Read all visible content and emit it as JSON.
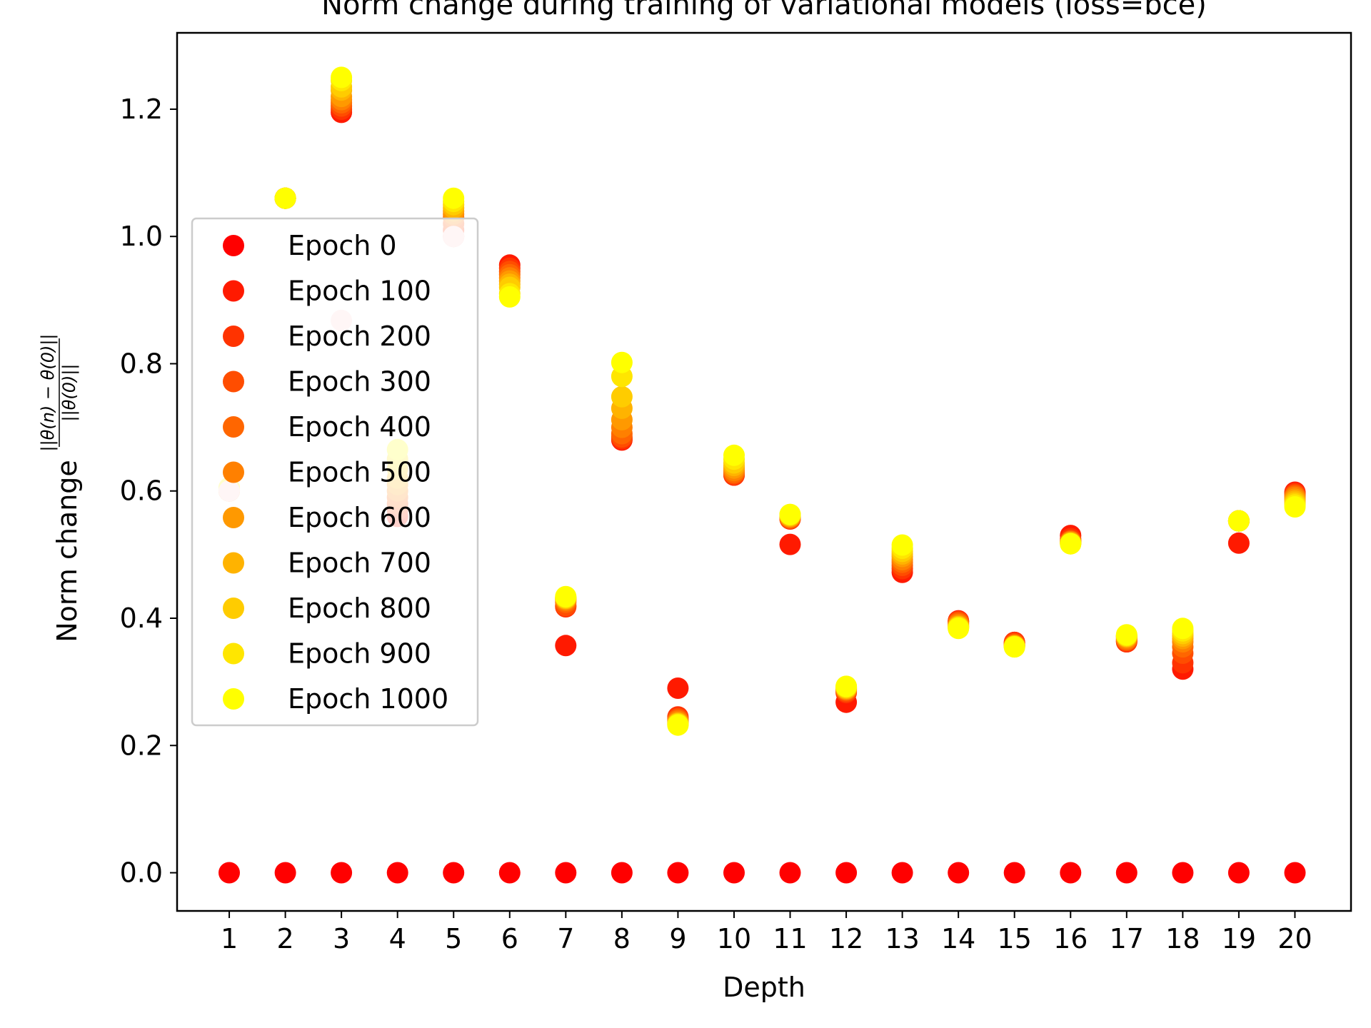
{
  "chart_data": {
    "type": "scatter",
    "title": "Norm change during training of variational models (loss=bce)",
    "xlabel": "Depth",
    "ylabel_prefix": "Norm change",
    "ylabel_frac_num": "||θ(n) − θ(0)||",
    "ylabel_frac_den": "||θ(0)||",
    "x": [
      1,
      2,
      3,
      4,
      5,
      6,
      7,
      8,
      9,
      10,
      11,
      12,
      13,
      14,
      15,
      16,
      17,
      18,
      19,
      20
    ],
    "xlim": [
      0.07,
      21.0
    ],
    "ylim": [
      -0.06,
      1.32
    ],
    "x_ticks": [
      "1",
      "2",
      "3",
      "4",
      "5",
      "6",
      "7",
      "8",
      "9",
      "10",
      "11",
      "12",
      "13",
      "14",
      "15",
      "16",
      "17",
      "18",
      "19",
      "20"
    ],
    "y_ticks": [
      {
        "value": 0.0,
        "label": "0.0"
      },
      {
        "value": 0.2,
        "label": "0.2"
      },
      {
        "value": 0.4,
        "label": "0.4"
      },
      {
        "value": 0.6,
        "label": "0.6"
      },
      {
        "value": 0.8,
        "label": "0.8"
      },
      {
        "value": 1.0,
        "label": "1.0"
      },
      {
        "value": 1.2,
        "label": "1.2"
      }
    ],
    "legend": {
      "placement": "center-left"
    },
    "grid": false,
    "series": [
      {
        "name": "Epoch 0",
        "color": "#ff0000",
        "values": [
          0,
          0,
          0,
          0,
          0,
          0,
          0,
          0,
          0,
          0,
          0,
          0,
          0,
          0,
          0,
          0,
          0,
          0,
          0,
          0
        ]
      },
      {
        "name": "Epoch 100",
        "color": "#ff1a00",
        "values": [
          0.6,
          1.06,
          1.195,
          0.56,
          1.0,
          0.955,
          0.357,
          0.68,
          0.29,
          0.625,
          0.516,
          0.268,
          0.472,
          0.396,
          0.362,
          0.53,
          0.363,
          0.32,
          0.518,
          0.598
        ]
      },
      {
        "name": "Epoch 200",
        "color": "#ff3300",
        "values": [
          0.6,
          1.06,
          1.2,
          0.57,
          1.01,
          0.95,
          0.418,
          0.682,
          0.245,
          0.625,
          0.556,
          0.283,
          0.478,
          0.395,
          0.362,
          0.525,
          0.363,
          0.33,
          0.553,
          0.596
        ]
      },
      {
        "name": "Epoch 300",
        "color": "#ff4d00",
        "values": [
          0.6,
          1.06,
          1.205,
          0.58,
          1.02,
          0.945,
          0.42,
          0.685,
          0.242,
          0.627,
          0.557,
          0.285,
          0.483,
          0.394,
          0.36,
          0.522,
          0.365,
          0.345,
          0.553,
          0.594
        ]
      },
      {
        "name": "Epoch 400",
        "color": "#ff6600",
        "values": [
          0.6,
          1.06,
          1.21,
          0.59,
          1.03,
          0.94,
          0.425,
          0.69,
          0.24,
          0.629,
          0.558,
          0.287,
          0.488,
          0.392,
          0.358,
          0.521,
          0.366,
          0.355,
          0.553,
          0.592
        ]
      },
      {
        "name": "Epoch 500",
        "color": "#ff8000",
        "values": [
          0.6,
          1.06,
          1.215,
          0.6,
          1.035,
          0.935,
          0.428,
          0.7,
          0.238,
          0.632,
          0.559,
          0.288,
          0.492,
          0.39,
          0.357,
          0.52,
          0.368,
          0.363,
          0.553,
          0.59
        ]
      },
      {
        "name": "Epoch 600",
        "color": "#ff9900",
        "values": [
          0.6,
          1.06,
          1.22,
          0.61,
          1.04,
          0.93,
          0.43,
          0.712,
          0.236,
          0.636,
          0.56,
          0.289,
          0.497,
          0.388,
          0.357,
          0.519,
          0.37,
          0.368,
          0.553,
          0.587
        ]
      },
      {
        "name": "Epoch 700",
        "color": "#ffb300",
        "values": [
          0.6,
          1.06,
          1.23,
          0.62,
          1.045,
          0.925,
          0.431,
          0.73,
          0.235,
          0.64,
          0.561,
          0.29,
          0.501,
          0.387,
          0.356,
          0.518,
          0.371,
          0.372,
          0.553,
          0.584
        ]
      },
      {
        "name": "Epoch 800",
        "color": "#ffcc00",
        "values": [
          0.605,
          1.06,
          1.235,
          0.635,
          1.05,
          0.92,
          0.432,
          0.748,
          0.234,
          0.644,
          0.562,
          0.291,
          0.505,
          0.386,
          0.356,
          0.518,
          0.372,
          0.376,
          0.553,
          0.581
        ]
      },
      {
        "name": "Epoch 900",
        "color": "#ffe600",
        "values": [
          0.605,
          1.06,
          1.245,
          0.65,
          1.055,
          0.91,
          0.433,
          0.78,
          0.233,
          0.65,
          0.563,
          0.292,
          0.51,
          0.385,
          0.355,
          0.517,
          0.373,
          0.38,
          0.553,
          0.578
        ]
      },
      {
        "name": "Epoch 1000",
        "color": "#ffff00",
        "values": [
          0.605,
          1.06,
          1.25,
          0.665,
          1.06,
          0.905,
          0.434,
          0.802,
          0.232,
          0.656,
          0.563,
          0.293,
          0.515,
          0.384,
          0.355,
          0.517,
          0.374,
          0.384,
          0.553,
          0.575
        ]
      }
    ],
    "overlay": {
      "name": "pale overlay points",
      "color": "#ffd0d0",
      "points": [
        {
          "x": 3,
          "y": 0.868
        },
        {
          "x": 5,
          "y": 1.0
        },
        {
          "x": 1,
          "y": 0.6
        }
      ]
    }
  }
}
